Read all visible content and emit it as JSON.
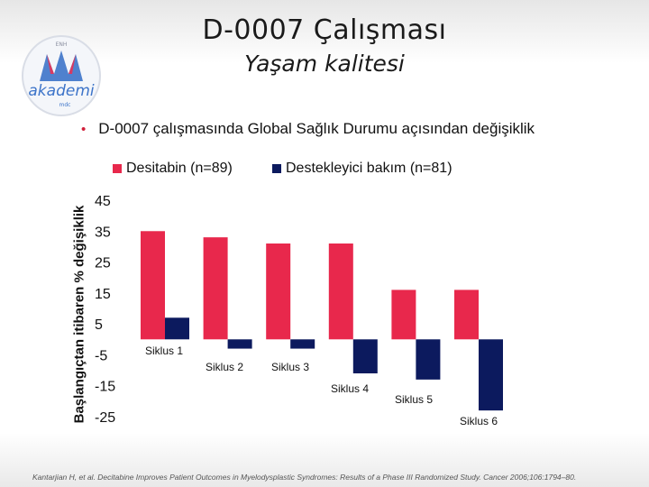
{
  "header": {
    "title": "D-0007 Çalışması",
    "subtitle": "Yaşam kalitesi"
  },
  "logo": {
    "text": "akademi",
    "top_text": "ENH",
    "bottom_text": "mdc"
  },
  "bullet_text": "D-0007 çalışmasında Global Sağlık Durumu açısından değişiklik",
  "footer": "Kantarjian H, et al. Decitabine Improves Patient Outcomes in Myelodysplastic Syndromes: Results of a Phase III Randomized Study. Cancer 2006;106:1794–80.",
  "colors": {
    "series1": "#e8284c",
    "series2": "#0c1a5e",
    "bullet": "#d11f3a"
  },
  "chart_data": {
    "type": "bar",
    "ylabel": "Başlangıçtan itibaren % değişiklik",
    "categories": [
      "Siklus 1",
      "Siklus 2",
      "Siklus 3",
      "Siklus 4",
      "Siklus 5",
      "Siklus 6"
    ],
    "series": [
      {
        "name": "Desitabin (n=89)",
        "values": [
          35,
          33,
          31,
          31,
          16,
          16
        ]
      },
      {
        "name": "Destekleyici bakım (n=81)",
        "values": [
          7,
          -3,
          -3,
          -11,
          -13,
          -23
        ]
      }
    ],
    "yticks": [
      "45",
      "35",
      "25",
      "15",
      "5",
      "-5",
      "-15",
      "-25"
    ],
    "ylim": [
      -25,
      45
    ],
    "grid": false,
    "legend": "top"
  }
}
